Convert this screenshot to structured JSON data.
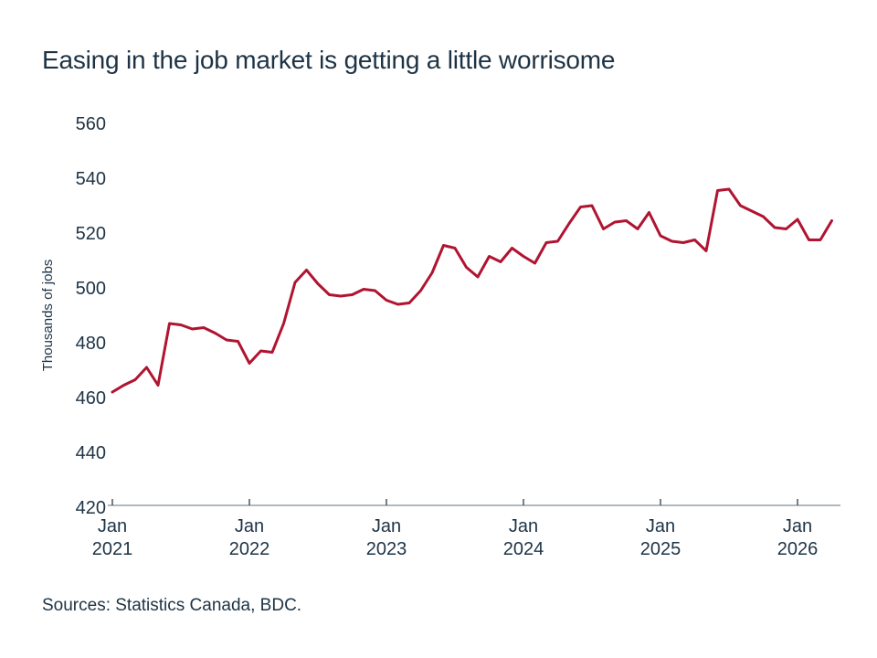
{
  "title": "Easing in the job market is getting a little worrisome",
  "source_note": "Sources: Statistics Canada, BDC.",
  "colors": {
    "line": "#b01431",
    "text": "#1d3345",
    "axis": "#9aa0a6",
    "tick": "#4a545e",
    "background": "#ffffff"
  },
  "chart_data": {
    "type": "line",
    "title": "Easing in the job market is getting a little worrisome",
    "xlabel": "",
    "ylabel": "Thousands of jobs",
    "ylim": [
      420,
      560
    ],
    "yticks": [
      420,
      440,
      460,
      480,
      500,
      520,
      540,
      560
    ],
    "grid": false,
    "legend": false,
    "frequency": "monthly",
    "x_tick_labels": [
      {
        "line1": "Jan",
        "line2": "2021",
        "index": 0
      },
      {
        "line1": "Jan",
        "line2": "2022",
        "index": 12
      },
      {
        "line1": "Jan",
        "line2": "2023",
        "index": 24
      },
      {
        "line1": "Jan",
        "line2": "2024",
        "index": 36
      },
      {
        "line1": "Jan",
        "line2": "2025",
        "index": 48
      },
      {
        "line1": "Jan",
        "line2": "2026",
        "index": 60
      }
    ],
    "x": [
      "2021-01",
      "2021-02",
      "2021-03",
      "2021-04",
      "2021-05",
      "2021-06",
      "2021-07",
      "2021-08",
      "2021-09",
      "2021-10",
      "2021-11",
      "2021-12",
      "2022-01",
      "2022-02",
      "2022-03",
      "2022-04",
      "2022-05",
      "2022-06",
      "2022-07",
      "2022-08",
      "2022-09",
      "2022-10",
      "2022-11",
      "2022-12",
      "2023-01",
      "2023-02",
      "2023-03",
      "2023-04",
      "2023-05",
      "2023-06",
      "2023-07",
      "2023-08",
      "2023-09",
      "2023-10",
      "2023-11",
      "2023-12",
      "2024-01",
      "2024-02",
      "2024-03",
      "2024-04",
      "2024-05",
      "2024-06",
      "2024-07",
      "2024-08",
      "2024-09",
      "2024-10",
      "2024-11",
      "2024-12",
      "2025-01",
      "2025-02",
      "2025-03",
      "2025-04",
      "2025-05",
      "2025-06",
      "2025-07",
      "2025-08",
      "2025-09",
      "2025-10",
      "2025-11",
      "2025-12",
      "2026-01",
      "2026-02",
      "2026-03",
      "2026-04"
    ],
    "series": [
      {
        "name": "Thousands of jobs",
        "values": [
          462,
          464.5,
          466.5,
          471,
          464.5,
          487,
          486.5,
          485,
          485.5,
          483.5,
          481,
          480.5,
          472.5,
          477,
          476.5,
          487,
          502,
          506.5,
          501.5,
          497.5,
          497,
          497.5,
          499.5,
          499,
          495.5,
          494,
          494.5,
          499,
          505.5,
          515.5,
          514.5,
          507.5,
          504,
          511.5,
          509.5,
          514.5,
          511.5,
          509,
          516.5,
          517,
          523.5,
          529.5,
          530,
          521.5,
          524,
          524.5,
          521.5,
          527.5,
          519,
          517,
          516.5,
          517.5,
          513.5,
          535.5,
          536,
          530,
          528,
          526,
          522,
          521.5,
          525,
          517.5,
          517.5,
          524.5
        ]
      }
    ]
  }
}
